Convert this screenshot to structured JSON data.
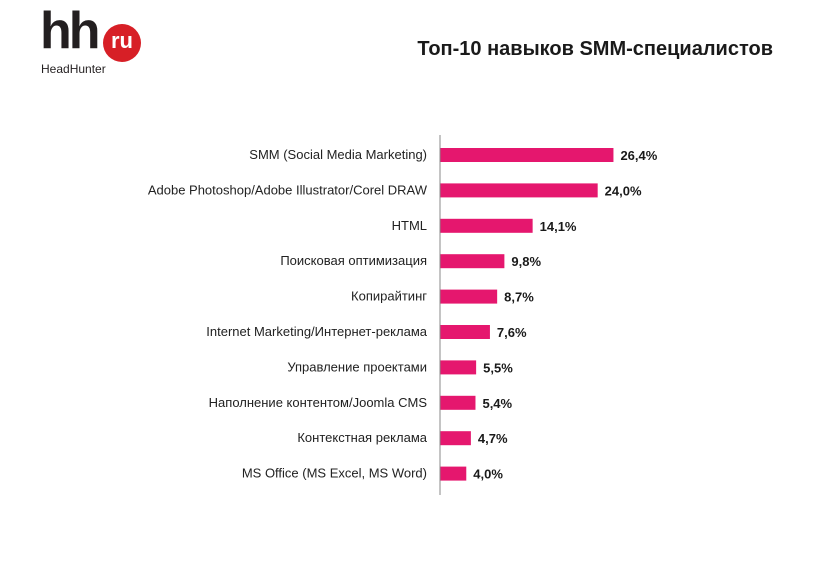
{
  "logo": {
    "main": "hh",
    "badge": "ru",
    "subtitle": "HeadHunter"
  },
  "colors": {
    "bar": "#E5176E",
    "axis": "#888888"
  },
  "chart_data": {
    "type": "bar",
    "orientation": "horizontal",
    "title": "Топ-10 навыков SMM-специалистов",
    "categories": [
      "SMM (Social Media Marketing)",
      "Adobe Photoshop/Adobe Illustrator/Corel DRAW",
      "HTML",
      "Поисковая оптимизация",
      "Копирайтинг",
      "Internet Marketing/Интернет-реклама",
      "Управление проектами",
      "Наполнение контентом/Joomla  CMS",
      "Контекстная  реклама",
      "MS Office (MS Excel, MS Word)"
    ],
    "values": [
      26.4,
      24.0,
      14.1,
      9.8,
      8.7,
      7.6,
      5.5,
      5.4,
      4.7,
      4.0
    ],
    "labels": [
      "26,4%",
      "24,0%",
      "14,1%",
      "9,8%",
      "8,7%",
      "7,6%",
      "5,5%",
      "5,4%",
      "4,7%",
      "4,0%"
    ],
    "unit": "%",
    "xlim": [
      0,
      30
    ],
    "grid": false,
    "legend": "none"
  }
}
